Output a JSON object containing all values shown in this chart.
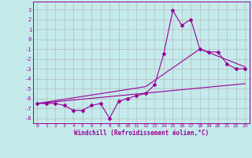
{
  "xlabel": "Windchill (Refroidissement éolien,°C)",
  "bg_color": "#c5eaec",
  "grid_color": "#b0b0b0",
  "line_color": "#990099",
  "xlim": [
    -0.5,
    23.5
  ],
  "ylim": [
    -8.5,
    3.8
  ],
  "yticks": [
    3,
    2,
    1,
    0,
    -1,
    -2,
    -3,
    -4,
    -5,
    -6,
    -7,
    -8
  ],
  "xticks": [
    0,
    1,
    2,
    3,
    4,
    5,
    6,
    7,
    8,
    9,
    10,
    11,
    12,
    13,
    14,
    15,
    16,
    17,
    18,
    19,
    20,
    21,
    22,
    23
  ],
  "main_x": [
    0,
    1,
    2,
    3,
    4,
    5,
    6,
    7,
    8,
    9,
    10,
    11,
    12,
    13,
    14,
    15,
    16,
    17,
    18,
    19,
    20,
    21,
    22,
    23
  ],
  "main_y": [
    -6.5,
    -6.5,
    -6.5,
    -6.7,
    -7.2,
    -7.2,
    -6.7,
    -6.5,
    -8.0,
    -6.3,
    -6.0,
    -5.7,
    -5.5,
    -4.6,
    -1.5,
    2.9,
    1.4,
    2.0,
    -1.0,
    -1.3,
    -1.3,
    -2.5,
    -3.0,
    -3.0
  ],
  "line2_x": [
    0,
    23
  ],
  "line2_y": [
    -6.5,
    -4.5
  ],
  "line3_x": [
    0,
    12,
    18,
    23
  ],
  "line3_y": [
    -6.5,
    -4.8,
    -1.0,
    -2.8
  ]
}
